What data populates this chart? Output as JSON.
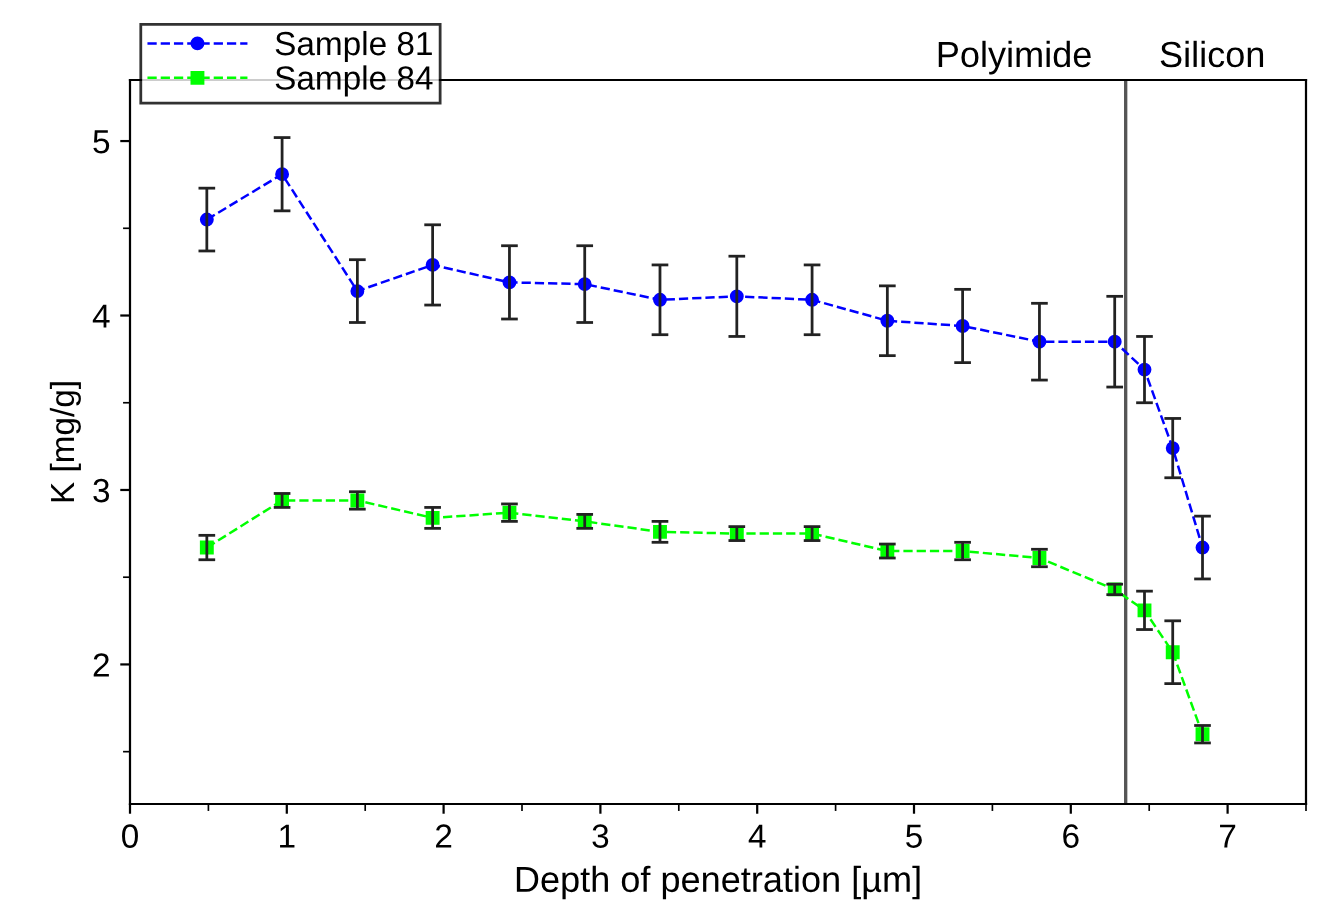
{
  "chart_data": {
    "type": "line",
    "xlabel": "Depth of penetration [µm]",
    "ylabel": "K [mg/g]",
    "x": [
      0.49,
      0.97,
      1.45,
      1.93,
      2.42,
      2.9,
      3.38,
      3.87,
      4.35,
      4.83,
      5.31,
      5.8,
      6.28,
      6.47,
      6.65,
      6.84
    ],
    "series": [
      {
        "name": "Sample 81",
        "color": "#0000ff",
        "marker": "circle",
        "values": [
          4.55,
          4.81,
          4.14,
          4.29,
          4.19,
          4.18,
          4.09,
          4.11,
          4.09,
          3.97,
          3.94,
          3.85,
          3.85,
          3.69,
          3.24,
          2.67
        ],
        "errors": [
          0.18,
          0.21,
          0.18,
          0.23,
          0.21,
          0.22,
          0.2,
          0.23,
          0.2,
          0.2,
          0.21,
          0.22,
          0.26,
          0.19,
          0.17,
          0.18
        ]
      },
      {
        "name": "Sample 84",
        "color": "#00ff00",
        "marker": "square",
        "values": [
          2.67,
          2.94,
          2.94,
          2.84,
          2.87,
          2.82,
          2.76,
          2.75,
          2.75,
          2.65,
          2.65,
          2.61,
          2.43,
          2.31,
          2.07,
          1.6
        ],
        "errors": [
          0.07,
          0.04,
          0.05,
          0.06,
          0.05,
          0.04,
          0.06,
          0.04,
          0.04,
          0.04,
          0.05,
          0.05,
          0.03,
          0.11,
          0.18,
          0.05
        ]
      }
    ],
    "line_style": "dashed",
    "xlim": [
      0,
      7.5
    ],
    "xticks": [
      0,
      1,
      2,
      3,
      4,
      5,
      6,
      7
    ],
    "ylim": [
      1.2,
      5.35
    ],
    "yticks": [
      2,
      3,
      4,
      5
    ],
    "ref_lines": [
      {
        "axis": "x",
        "value": 6.35,
        "color": "#555555"
      }
    ],
    "annotations": [
      "Polyimide",
      "Silicon"
    ],
    "grid": false,
    "legend": "top left"
  }
}
